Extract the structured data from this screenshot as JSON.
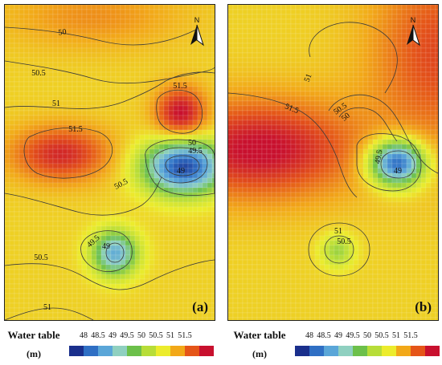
{
  "panels": [
    {
      "letter": "(a)",
      "north_label": "N",
      "hotspots": [
        {
          "level": 51.0,
          "spread": 0.55
        },
        {
          "level": 51.6,
          "spread": 0.7
        },
        {
          "level": 51.8,
          "spread": 0.6
        },
        {
          "level": 47.9,
          "spread": 0.8
        },
        {
          "level": 48.7,
          "spread": 0.45
        }
      ],
      "contour_labels": [
        "50",
        "50.5",
        "51.5",
        "51",
        "51.5",
        "50",
        "49.5",
        "49",
        "50.5",
        "49.5",
        "49",
        "50.5",
        "51"
      ]
    },
    {
      "letter": "(b)",
      "north_label": "N",
      "hotspots": [
        {
          "level": 51.8,
          "spread": 0.9
        },
        {
          "level": 51.4,
          "spread": 0.7
        },
        {
          "level": 47.9,
          "spread": 0.55
        },
        {
          "level": 49.8,
          "spread": 0.35
        }
      ],
      "contour_labels": [
        "51",
        "51.5",
        "50.5",
        "50",
        "49.5",
        "49",
        "51",
        "50.5"
      ]
    }
  ],
  "legend": {
    "title": "Water table",
    "unit": "(m)",
    "ticks": [
      "48",
      "48.5",
      "49",
      "49.5",
      "50",
      "50.5",
      "51",
      "51.5"
    ],
    "colors": [
      "#1a2f8c",
      "#2f6fc4",
      "#5aa6d8",
      "#8fd0c0",
      "#6cc04a",
      "#b7dd38",
      "#ecec2c",
      "#f2a818",
      "#e55518",
      "#c8102e"
    ]
  },
  "base_level": 50.6
}
